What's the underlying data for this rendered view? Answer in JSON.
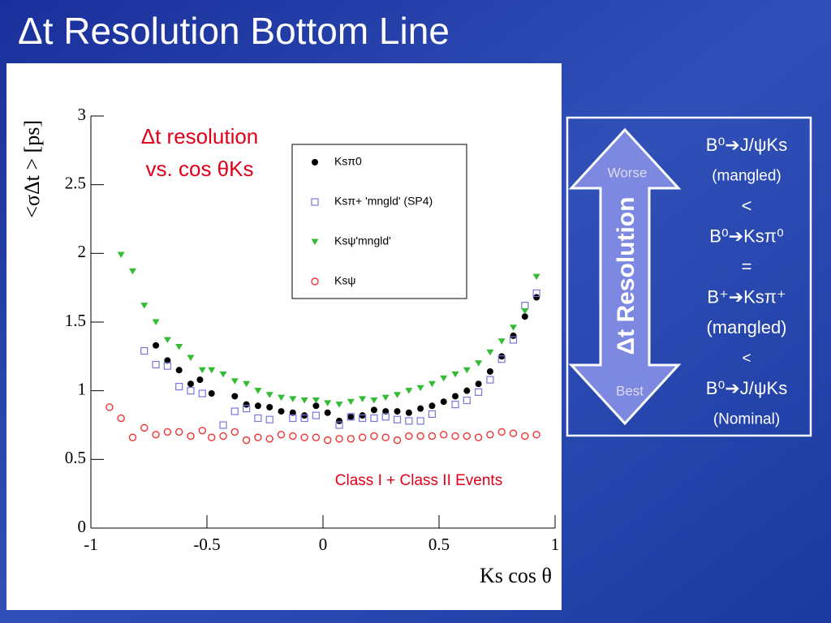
{
  "slide_title": "Δt Resolution Bottom Line",
  "chart_data": {
    "type": "scatter",
    "annotation": [
      "Δt resolution",
      "vs. cos θKs"
    ],
    "footnote": "Class I + Class II Events",
    "xlabel": "Ks  cos  θ",
    "ylabel": "<σΔt >  [ps]",
    "xlim": [
      -1,
      1
    ],
    "ylim": [
      0,
      3
    ],
    "xticks": [
      -1,
      -0.5,
      0,
      0.5,
      1
    ],
    "yticks": [
      0,
      0.5,
      1,
      1.5,
      2,
      2.5,
      3
    ],
    "series": [
      {
        "name": "Ksπ0",
        "color": "#000000",
        "marker": "filled-circle",
        "x": [
          -0.72,
          -0.67,
          -0.62,
          -0.57,
          -0.53,
          -0.48,
          -0.38,
          -0.33,
          -0.28,
          -0.23,
          -0.18,
          -0.13,
          -0.08,
          -0.03,
          0.02,
          0.07,
          0.12,
          0.17,
          0.22,
          0.27,
          0.32,
          0.37,
          0.42,
          0.47,
          0.52,
          0.57,
          0.62,
          0.67,
          0.72,
          0.77,
          0.82,
          0.87,
          0.92
        ],
        "values": [
          1.33,
          1.22,
          1.15,
          1.05,
          1.08,
          0.98,
          0.96,
          0.9,
          0.89,
          0.88,
          0.85,
          0.84,
          0.82,
          0.89,
          0.84,
          0.78,
          0.81,
          0.82,
          0.86,
          0.85,
          0.85,
          0.84,
          0.87,
          0.89,
          0.92,
          0.96,
          1.0,
          1.05,
          1.14,
          1.25,
          1.4,
          1.54,
          1.68
        ]
      },
      {
        "name": "Ksπ+ 'mngld' (SP4)",
        "color": "#7777dd",
        "marker": "open-square",
        "x": [
          -0.77,
          -0.72,
          -0.67,
          -0.62,
          -0.57,
          -0.52,
          -0.43,
          -0.38,
          -0.33,
          -0.28,
          -0.23,
          -0.13,
          -0.08,
          -0.03,
          0.07,
          0.12,
          0.17,
          0.22,
          0.27,
          0.32,
          0.37,
          0.42,
          0.47,
          0.57,
          0.62,
          0.67,
          0.72,
          0.77,
          0.82,
          0.87,
          0.92
        ],
        "values": [
          1.29,
          1.19,
          1.18,
          1.03,
          1.0,
          0.98,
          0.75,
          0.85,
          0.87,
          0.8,
          0.79,
          0.8,
          0.8,
          0.82,
          0.75,
          0.81,
          0.8,
          0.8,
          0.81,
          0.79,
          0.78,
          0.78,
          0.83,
          0.9,
          0.93,
          0.99,
          1.08,
          1.23,
          1.37,
          1.62,
          1.71
        ]
      },
      {
        "name": "Ksψ'mngld'",
        "color": "#33bb33",
        "marker": "filled-triangle-down",
        "x": [
          -0.87,
          -0.82,
          -0.77,
          -0.72,
          -0.67,
          -0.62,
          -0.57,
          -0.52,
          -0.48,
          -0.43,
          -0.38,
          -0.33,
          -0.28,
          -0.23,
          -0.18,
          -0.13,
          -0.08,
          -0.03,
          0.02,
          0.07,
          0.12,
          0.17,
          0.22,
          0.27,
          0.32,
          0.37,
          0.42,
          0.47,
          0.52,
          0.57,
          0.62,
          0.67,
          0.72,
          0.77,
          0.82,
          0.87,
          0.92
        ],
        "values": [
          1.99,
          1.87,
          1.62,
          1.5,
          1.37,
          1.32,
          1.24,
          1.15,
          1.15,
          1.12,
          1.07,
          1.05,
          1.0,
          0.97,
          0.95,
          0.94,
          0.93,
          0.93,
          0.91,
          0.9,
          0.92,
          0.94,
          0.93,
          0.95,
          0.97,
          1.0,
          1.02,
          1.05,
          1.09,
          1.12,
          1.15,
          1.2,
          1.28,
          1.36,
          1.46,
          1.58,
          1.83
        ]
      },
      {
        "name": "Ksψ",
        "color": "#ee3333",
        "marker": "open-circle",
        "x": [
          -0.92,
          -0.87,
          -0.82,
          -0.77,
          -0.72,
          -0.67,
          -0.62,
          -0.57,
          -0.52,
          -0.48,
          -0.43,
          -0.38,
          -0.33,
          -0.28,
          -0.23,
          -0.18,
          -0.13,
          -0.08,
          -0.03,
          0.02,
          0.07,
          0.12,
          0.17,
          0.22,
          0.27,
          0.32,
          0.37,
          0.42,
          0.47,
          0.52,
          0.57,
          0.62,
          0.67,
          0.72,
          0.77,
          0.82,
          0.87,
          0.92
        ],
        "values": [
          0.88,
          0.8,
          0.66,
          0.73,
          0.68,
          0.7,
          0.7,
          0.67,
          0.71,
          0.66,
          0.67,
          0.7,
          0.64,
          0.66,
          0.65,
          0.68,
          0.67,
          0.66,
          0.66,
          0.64,
          0.65,
          0.65,
          0.66,
          0.67,
          0.66,
          0.64,
          0.67,
          0.67,
          0.67,
          0.68,
          0.67,
          0.67,
          0.66,
          0.68,
          0.7,
          0.69,
          0.67,
          0.68
        ]
      }
    ]
  },
  "side_box": {
    "worse": "Worse",
    "best": "Best",
    "arrow_label": "Δt Resolution",
    "lines": [
      "B⁰➔J/ψKs",
      "(mangled)",
      "<",
      "B⁰➔Ksπ⁰",
      "=",
      "B⁺➔Ksπ⁺",
      "(mangled)",
      "<",
      "B⁰➔J/ψKs",
      "(Nominal)"
    ]
  }
}
